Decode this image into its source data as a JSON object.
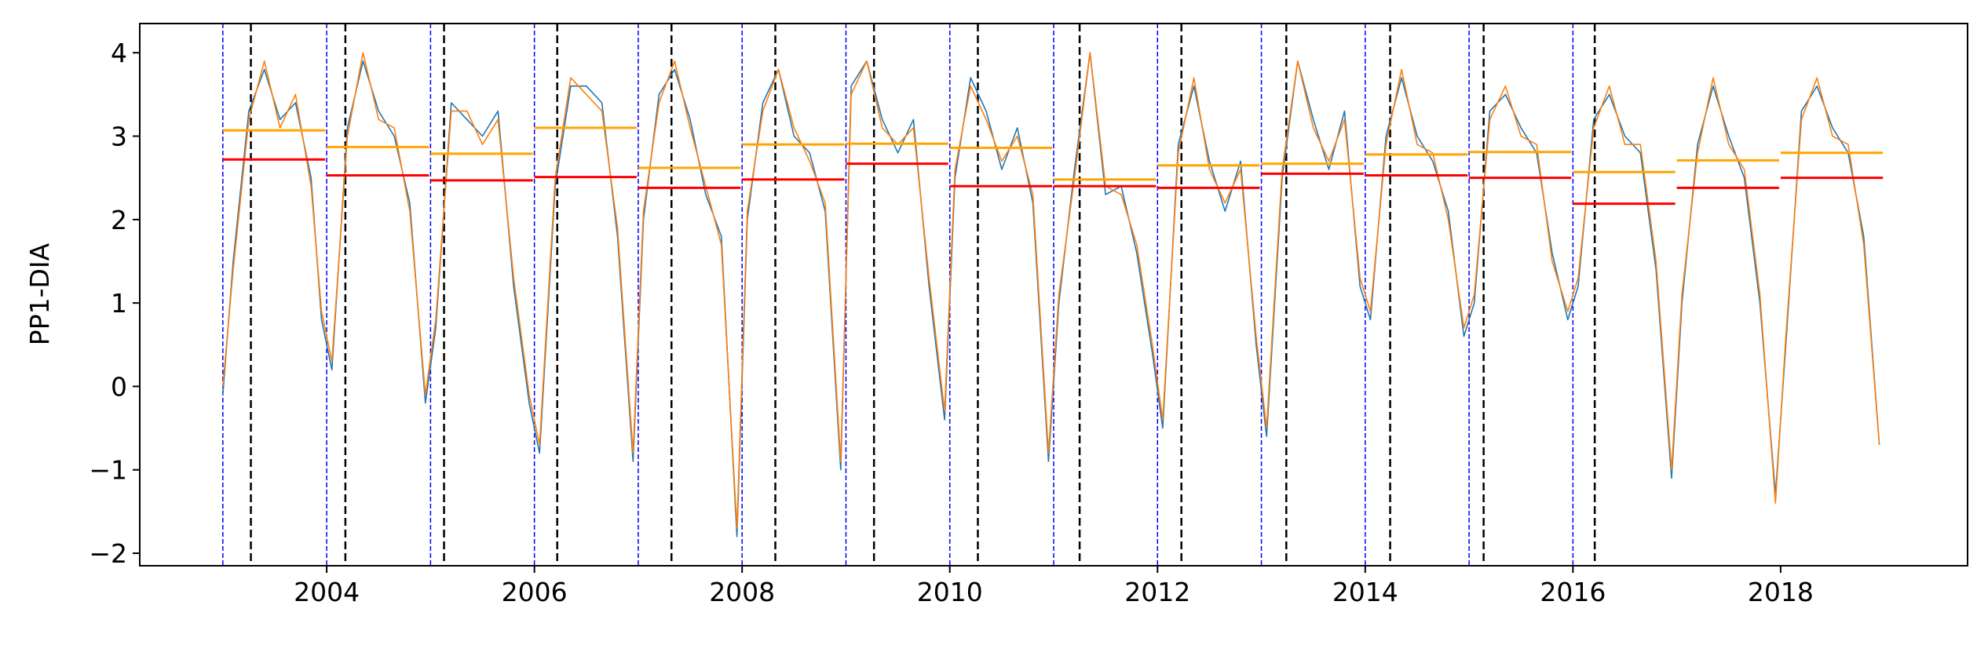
{
  "chart_data": {
    "type": "line",
    "title": "",
    "xlabel": "",
    "ylabel": "PP1-DIA",
    "xlim": [
      2002.2,
      2019.8
    ],
    "ylim": [
      -2.15,
      4.35
    ],
    "x_ticks": [
      2004,
      2006,
      2008,
      2010,
      2012,
      2014,
      2016,
      2018
    ],
    "y_ticks": [
      -2,
      -1,
      0,
      1,
      2,
      3,
      4
    ],
    "x_tick_labels": [
      "2004",
      "2006",
      "2008",
      "2010",
      "2012",
      "2014",
      "2016",
      "2018"
    ],
    "y_tick_labels": [
      "−2",
      "−1",
      "0",
      "1",
      "2",
      "3",
      "4"
    ],
    "grid": false,
    "colors": {
      "series_blue": "#1f77b4",
      "series_orange": "#ff7f0e",
      "annual_mean_orange": "#ffa500",
      "annual_mean_red": "#ff0000",
      "year_boundary": "#0000ff",
      "event_line": "#000000"
    },
    "series": [
      {
        "color": "#1f77b4",
        "x": [
          2003.0,
          2003.1,
          2003.25,
          2003.4,
          2003.55,
          2003.7,
          2003.85,
          2003.95,
          2004.05,
          2004.2,
          2004.35,
          2004.5,
          2004.65,
          2004.8,
          2004.95,
          2005.05,
          2005.2,
          2005.35,
          2005.5,
          2005.65,
          2005.8,
          2005.95,
          2006.05,
          2006.2,
          2006.35,
          2006.5,
          2006.65,
          2006.8,
          2006.95,
          2007.05,
          2007.2,
          2007.35,
          2007.5,
          2007.65,
          2007.8,
          2007.95,
          2008.05,
          2008.2,
          2008.35,
          2008.5,
          2008.65,
          2008.8,
          2008.95,
          2009.05,
          2009.2,
          2009.35,
          2009.5,
          2009.65,
          2009.8,
          2009.95,
          2010.05,
          2010.2,
          2010.35,
          2010.5,
          2010.65,
          2010.8,
          2010.95,
          2011.05,
          2011.2,
          2011.35,
          2011.5,
          2011.65,
          2011.8,
          2011.95,
          2012.05,
          2012.2,
          2012.35,
          2012.5,
          2012.65,
          2012.8,
          2012.95,
          2013.05,
          2013.2,
          2013.35,
          2013.5,
          2013.65,
          2013.8,
          2013.95,
          2014.05,
          2014.2,
          2014.35,
          2014.5,
          2014.65,
          2014.8,
          2014.95,
          2015.05,
          2015.2,
          2015.35,
          2015.5,
          2015.65,
          2015.8,
          2015.95,
          2016.05,
          2016.2,
          2016.35,
          2016.5,
          2016.65,
          2016.8,
          2016.95,
          2017.05,
          2017.2,
          2017.35,
          2017.5,
          2017.65,
          2017.8,
          2017.95,
          2018.05,
          2018.2,
          2018.35,
          2018.5,
          2018.65,
          2018.8,
          2018.95
        ],
        "y": [
          -0.1,
          1.5,
          3.3,
          3.8,
          3.2,
          3.4,
          2.5,
          0.8,
          0.2,
          3.1,
          3.9,
          3.3,
          3.0,
          2.2,
          -0.2,
          0.7,
          3.4,
          3.2,
          3.0,
          3.3,
          1.2,
          -0.2,
          -0.8,
          2.4,
          3.6,
          3.6,
          3.4,
          1.8,
          -0.9,
          2.0,
          3.5,
          3.8,
          3.2,
          2.3,
          1.8,
          -1.8,
          2.0,
          3.4,
          3.8,
          3.0,
          2.8,
          2.1,
          -1.0,
          3.6,
          3.9,
          3.2,
          2.8,
          3.2,
          1.2,
          -0.4,
          2.5,
          3.7,
          3.3,
          2.6,
          3.1,
          2.2,
          -0.9,
          1.0,
          2.6,
          4.0,
          2.3,
          2.4,
          1.6,
          0.4,
          -0.5,
          2.9,
          3.6,
          2.7,
          2.1,
          2.7,
          0.5,
          -0.6,
          2.5,
          3.9,
          3.2,
          2.6,
          3.3,
          1.2,
          0.8,
          3.0,
          3.7,
          3.0,
          2.7,
          2.1,
          0.6,
          1.0,
          3.3,
          3.5,
          3.1,
          2.8,
          1.6,
          0.8,
          1.2,
          3.2,
          3.5,
          3.0,
          2.8,
          1.4,
          -1.1,
          1.0,
          2.9,
          3.6,
          3.0,
          2.5,
          1.0,
          -1.3,
          0.5,
          3.3,
          3.6,
          3.1,
          2.8,
          1.8,
          -0.7
        ]
      },
      {
        "color": "#ff7f0e",
        "x": [
          2003.0,
          2003.1,
          2003.25,
          2003.4,
          2003.55,
          2003.7,
          2003.85,
          2003.95,
          2004.05,
          2004.2,
          2004.35,
          2004.5,
          2004.65,
          2004.8,
          2004.95,
          2005.05,
          2005.2,
          2005.35,
          2005.5,
          2005.65,
          2005.8,
          2005.95,
          2006.05,
          2006.2,
          2006.35,
          2006.5,
          2006.65,
          2006.8,
          2006.95,
          2007.05,
          2007.2,
          2007.35,
          2007.5,
          2007.65,
          2007.8,
          2007.95,
          2008.05,
          2008.2,
          2008.35,
          2008.5,
          2008.65,
          2008.8,
          2008.95,
          2009.05,
          2009.2,
          2009.35,
          2009.5,
          2009.65,
          2009.8,
          2009.95,
          2010.05,
          2010.2,
          2010.35,
          2010.5,
          2010.65,
          2010.8,
          2010.95,
          2011.05,
          2011.2,
          2011.35,
          2011.5,
          2011.65,
          2011.8,
          2011.95,
          2012.05,
          2012.2,
          2012.35,
          2012.5,
          2012.65,
          2012.8,
          2012.95,
          2013.05,
          2013.2,
          2013.35,
          2013.5,
          2013.65,
          2013.8,
          2013.95,
          2014.05,
          2014.2,
          2014.35,
          2014.5,
          2014.65,
          2014.8,
          2014.95,
          2015.05,
          2015.2,
          2015.35,
          2015.5,
          2015.65,
          2015.8,
          2015.95,
          2016.05,
          2016.2,
          2016.35,
          2016.5,
          2016.65,
          2016.8,
          2016.95,
          2017.05,
          2017.2,
          2017.35,
          2017.5,
          2017.65,
          2017.8,
          2017.95,
          2018.05,
          2018.2,
          2018.35,
          2018.5,
          2018.65,
          2018.8,
          2018.95
        ],
        "y": [
          0.0,
          1.4,
          3.2,
          3.9,
          3.1,
          3.5,
          2.4,
          0.9,
          0.3,
          3.0,
          4.0,
          3.2,
          3.1,
          2.1,
          -0.1,
          0.8,
          3.3,
          3.3,
          2.9,
          3.2,
          1.3,
          -0.1,
          -0.7,
          2.5,
          3.7,
          3.5,
          3.3,
          1.9,
          -0.8,
          2.1,
          3.4,
          3.9,
          3.1,
          2.4,
          1.7,
          -1.7,
          2.1,
          3.3,
          3.8,
          3.1,
          2.7,
          2.2,
          -0.9,
          3.5,
          3.9,
          3.1,
          2.9,
          3.1,
          1.3,
          -0.3,
          2.6,
          3.6,
          3.2,
          2.7,
          3.0,
          2.3,
          -0.8,
          1.1,
          2.5,
          4.0,
          2.4,
          2.3,
          1.7,
          0.5,
          -0.4,
          2.8,
          3.7,
          2.6,
          2.2,
          2.6,
          0.6,
          -0.5,
          2.6,
          3.9,
          3.1,
          2.7,
          3.2,
          1.3,
          0.9,
          2.9,
          3.8,
          2.9,
          2.8,
          2.0,
          0.7,
          1.1,
          3.2,
          3.6,
          3.0,
          2.9,
          1.5,
          0.9,
          1.3,
          3.1,
          3.6,
          2.9,
          2.9,
          1.5,
          -1.0,
          1.1,
          2.8,
          3.7,
          2.9,
          2.6,
          1.1,
          -1.4,
          0.6,
          3.2,
          3.7,
          3.0,
          2.9,
          1.7,
          -0.7
        ]
      }
    ],
    "annual_means": [
      {
        "year": 2003,
        "orange": 3.07,
        "red": 2.72
      },
      {
        "year": 2004,
        "orange": 2.87,
        "red": 2.53
      },
      {
        "year": 2005,
        "orange": 2.79,
        "red": 2.47
      },
      {
        "year": 2006,
        "orange": 3.1,
        "red": 2.51
      },
      {
        "year": 2007,
        "orange": 2.62,
        "red": 2.38
      },
      {
        "year": 2008,
        "orange": 2.9,
        "red": 2.48
      },
      {
        "year": 2009,
        "orange": 2.91,
        "red": 2.67
      },
      {
        "year": 2010,
        "orange": 2.86,
        "red": 2.4
      },
      {
        "year": 2011,
        "orange": 2.48,
        "red": 2.4
      },
      {
        "year": 2012,
        "orange": 2.65,
        "red": 2.38
      },
      {
        "year": 2013,
        "orange": 2.67,
        "red": 2.55
      },
      {
        "year": 2014,
        "orange": 2.78,
        "red": 2.53
      },
      {
        "year": 2015,
        "orange": 2.81,
        "red": 2.5
      },
      {
        "year": 2016,
        "orange": 2.57,
        "red": 2.19
      },
      {
        "year": 2017,
        "orange": 2.71,
        "red": 2.38
      },
      {
        "year": 2018,
        "orange": 2.8,
        "red": 2.5
      }
    ],
    "year_boundaries": [
      2003,
      2004,
      2005,
      2006,
      2007,
      2008,
      2009,
      2010,
      2011,
      2012,
      2013,
      2014,
      2015,
      2016
    ],
    "event_lines": [
      2003.27,
      2004.18,
      2005.13,
      2006.22,
      2007.32,
      2008.32,
      2009.27,
      2010.27,
      2011.25,
      2012.23,
      2013.24,
      2014.24,
      2015.14,
      2016.21
    ]
  }
}
